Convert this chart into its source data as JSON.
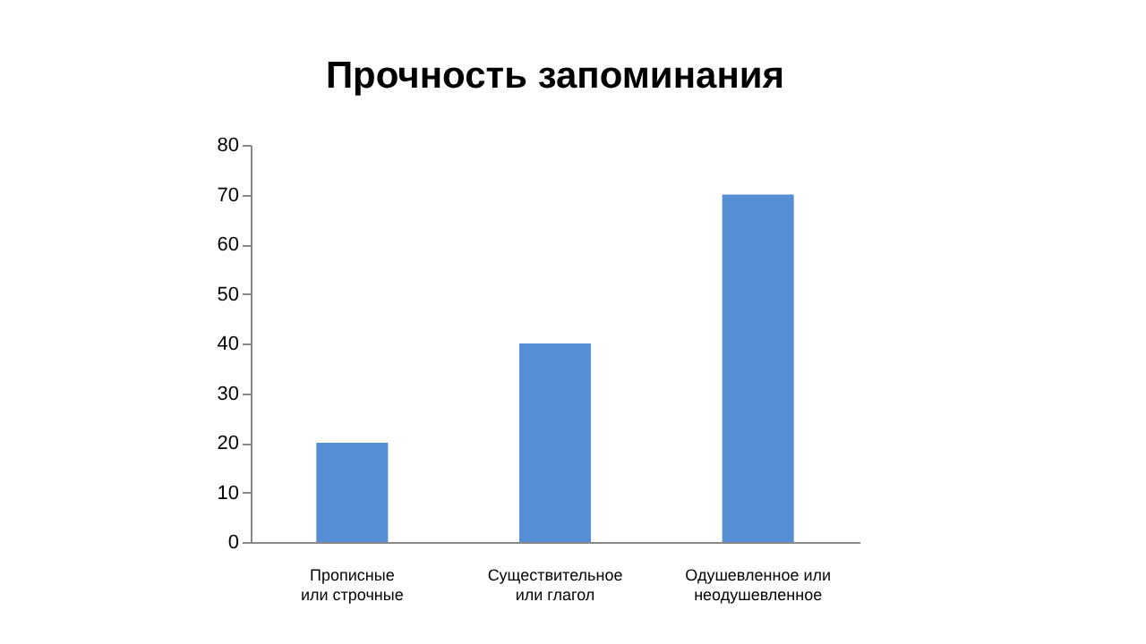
{
  "chart_data": {
    "type": "bar",
    "title": "Прочность запоминания",
    "categories": [
      "Прописные\nили строчные",
      "Существительное\nили глагол",
      "Одушевленное или\nнеодушевленное"
    ],
    "values": [
      20,
      40,
      70
    ],
    "color": "#558ed5",
    "ylim": [
      0,
      80
    ],
    "yticks": [
      0,
      10,
      20,
      30,
      40,
      50,
      60,
      70,
      80
    ],
    "grid": false
  }
}
